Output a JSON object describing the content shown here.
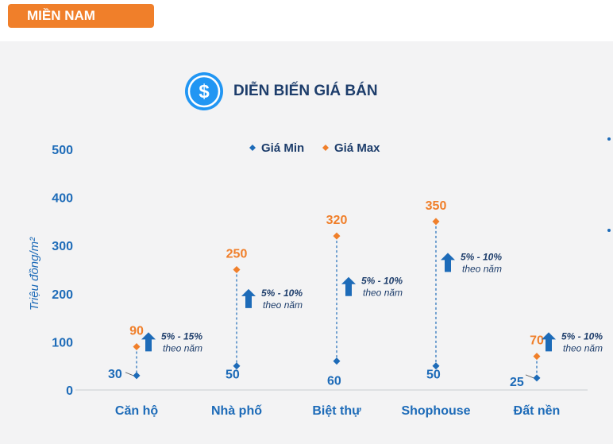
{
  "header": {
    "badge_label": "MIỀN NAM"
  },
  "colors": {
    "min": "#1d6bb8",
    "max": "#f07f2a",
    "accent": "#f07f2a",
    "title": "#1d3d6b",
    "axis": "#1d6bb8"
  },
  "chart_data": {
    "type": "scatter",
    "title": "DIỄN BIẾN GIÁ BÁN",
    "xlabel": "",
    "ylabel": "Triệu đồng/m²",
    "ylim": [
      0,
      500
    ],
    "yticks": [
      0,
      100,
      200,
      300,
      400,
      500
    ],
    "grid": false,
    "legend": "top",
    "categories": [
      "Căn hộ",
      "Nhà phố",
      "Biệt thự",
      "Shophouse",
      "Đất nền"
    ],
    "series": [
      {
        "name": "Giá Min",
        "values": [
          30,
          50,
          60,
          50,
          25
        ]
      },
      {
        "name": "Giá Max",
        "values": [
          90,
          250,
          320,
          350,
          70
        ]
      }
    ],
    "annotations": [
      {
        "category": "Căn hộ",
        "line1": "5% - 15%",
        "line2": "theo năm",
        "at": 100
      },
      {
        "category": "Nhà phố",
        "line1": "5% - 10%",
        "line2": "theo năm",
        "at": 190
      },
      {
        "category": "Biệt thự",
        "line1": "5% - 10%",
        "line2": "theo năm",
        "at": 215
      },
      {
        "category": "Shophouse",
        "line1": "5% - 10%",
        "line2": "theo năm",
        "at": 265
      },
      {
        "category": "Đất nền",
        "line1": "5% - 10%",
        "line2": "theo năm",
        "at": 100
      }
    ]
  }
}
